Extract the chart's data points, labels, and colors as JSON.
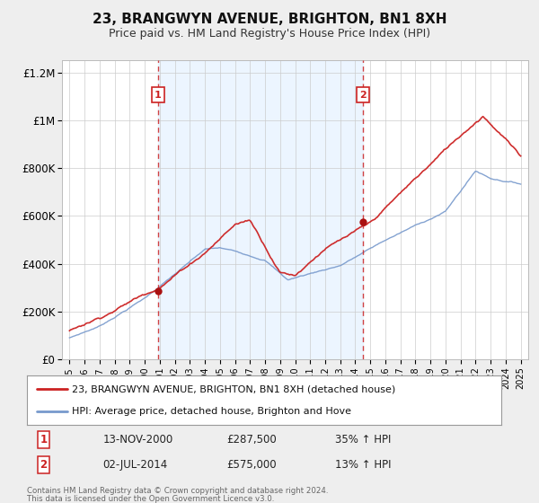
{
  "title": "23, BRANGWYN AVENUE, BRIGHTON, BN1 8XH",
  "subtitle": "Price paid vs. HM Land Registry's House Price Index (HPI)",
  "background_color": "#eeeeee",
  "plot_bg_color": "#ffffff",
  "red_line_color": "#cc2222",
  "blue_line_color": "#7799cc",
  "vline_color": "#cc2222",
  "marker_color": "#aa1111",
  "shade_color": "#ddeeff",
  "shade_alpha": 0.55,
  "ylim": [
    0,
    1250000
  ],
  "xlim_start": 1994.5,
  "xlim_end": 2025.5,
  "yticks": [
    0,
    200000,
    400000,
    600000,
    800000,
    1000000,
    1200000
  ],
  "ytick_labels": [
    "£0",
    "£200K",
    "£400K",
    "£600K",
    "£800K",
    "£1M",
    "£1.2M"
  ],
  "xticks": [
    1995,
    1996,
    1997,
    1998,
    1999,
    2000,
    2001,
    2002,
    2003,
    2004,
    2005,
    2006,
    2007,
    2008,
    2009,
    2010,
    2011,
    2012,
    2013,
    2014,
    2015,
    2016,
    2017,
    2018,
    2019,
    2020,
    2021,
    2022,
    2023,
    2024,
    2025
  ],
  "event1_x": 2000.87,
  "event1_y": 287500,
  "event2_x": 2014.5,
  "event2_y": 575000,
  "legend_line1": "23, BRANGWYN AVENUE, BRIGHTON, BN1 8XH (detached house)",
  "legend_line2": "HPI: Average price, detached house, Brighton and Hove",
  "event1_date": "13-NOV-2000",
  "event1_price": "£287,500",
  "event1_hpi": "35% ↑ HPI",
  "event2_date": "02-JUL-2014",
  "event2_price": "£575,000",
  "event2_hpi": "13% ↑ HPI",
  "footer1": "Contains HM Land Registry data © Crown copyright and database right 2024.",
  "footer2": "This data is licensed under the Open Government Licence v3.0."
}
